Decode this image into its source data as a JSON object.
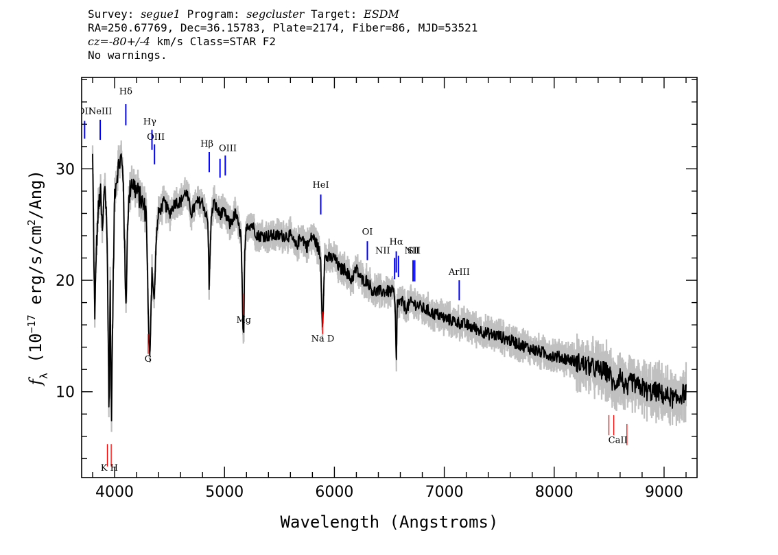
{
  "header": {
    "survey_label": "Survey: ",
    "survey": "segue1",
    "program_label": " Program: ",
    "program": "segcluster",
    "target_label": " Target: ",
    "target": "ESDM",
    "line2": "RA=250.67769, Dec=36.15783, Plate=2174, Fiber=86, MJD=53521",
    "cz_label": "cz",
    "cz_value": "=-80+/-4",
    "cz_rest": " km/s Class=STAR F2",
    "line4": "No warnings."
  },
  "colors": {
    "flux": "#000000",
    "error_band": "#c0c0c0",
    "emission": "#0000ff",
    "absorption": "#ff0000"
  },
  "chart_data": {
    "type": "line",
    "xlabel": "Wavelength (Angstroms)",
    "ylabel": "f_λ (10^-17 erg/s/cm^2/Ang)",
    "ylabel_parts": {
      "f": "f",
      "sub": "λ",
      "pre": " (10",
      "exp": "−17",
      "mid": " erg/s/cm",
      "exp2": "2",
      "post": "/Ang)"
    },
    "xlim": [
      3700,
      9300
    ],
    "ylim": [
      2.3,
      38.2
    ],
    "xticks": [
      4000,
      5000,
      6000,
      7000,
      8000,
      9000
    ],
    "yticks": [
      10,
      20,
      30
    ],
    "xtick_labels": [
      "4000",
      "5000",
      "6000",
      "7000",
      "8000",
      "9000"
    ],
    "ytick_labels": [
      "10",
      "20",
      "30"
    ],
    "series": [
      {
        "x": [
          3800,
          3820,
          3830,
          3850,
          3870,
          3890,
          3910,
          3930,
          3950,
          3960,
          3970,
          3985,
          4000,
          4030,
          4060,
          4080,
          4102,
          4120,
          4150,
          4200,
          4250,
          4290,
          4310,
          4320,
          4340,
          4360,
          4380,
          4400,
          4450,
          4500,
          4550,
          4600,
          4650,
          4700,
          4750,
          4800,
          4830,
          4850,
          4861,
          4875,
          4900,
          4950,
          5000,
          5050,
          5100,
          5150,
          5168,
          5175,
          5183,
          5200,
          5250,
          5300,
          5350,
          5400,
          5450,
          5500,
          5550,
          5600,
          5650,
          5700,
          5750,
          5800,
          5850,
          5875,
          5890,
          5896,
          5910,
          5950,
          6000,
          6050,
          6100,
          6150,
          6200,
          6250,
          6300,
          6350,
          6400,
          6450,
          6500,
          6540,
          6555,
          6563,
          6572,
          6590,
          6620,
          6650,
          6700,
          6750,
          6800,
          6850,
          6900,
          6950,
          7000,
          7100,
          7200,
          7300,
          7400,
          7500,
          7600,
          7700,
          7800,
          7900,
          8000,
          8100,
          8200,
          8300,
          8400,
          8498,
          8542,
          8600,
          8662,
          8700,
          8750,
          8800,
          8850,
          8900,
          8950,
          9000,
          9050,
          9100,
          9150,
          9200
        ],
        "y": [
          31,
          16,
          22,
          26,
          28,
          24,
          29,
          25,
          8,
          20,
          7,
          18,
          28,
          30,
          31,
          29,
          17,
          26,
          29,
          28,
          27,
          26,
          15,
          13,
          21,
          18,
          24,
          26,
          27,
          26,
          27,
          27,
          28,
          26,
          27,
          27,
          26,
          25,
          19,
          25,
          27,
          26,
          26,
          25,
          26,
          24,
          16,
          14,
          22,
          25,
          25,
          24,
          24,
          24,
          24,
          24,
          24,
          24,
          23,
          24,
          23,
          24,
          23,
          22,
          16,
          17,
          22,
          22,
          22,
          21,
          21,
          20,
          21,
          20,
          20,
          19,
          19,
          19,
          19,
          19,
          17,
          12,
          18,
          18,
          18,
          17.5,
          18,
          17.8,
          17.5,
          17.3,
          17,
          16.9,
          16.6,
          16.3,
          16,
          15.6,
          15.2,
          15,
          14.6,
          14.2,
          13.8,
          13.5,
          13.2,
          13,
          12.7,
          12.3,
          12,
          11.7,
          10.5,
          11.5,
          10,
          11,
          10.5,
          10.4,
          10,
          10,
          10,
          9.6,
          9.6,
          9.2,
          9.7,
          10
        ]
      }
    ],
    "emission_lines": [
      {
        "label": "OII",
        "x": 3727,
        "y_top": 34.3,
        "y_bottom": 32.7
      },
      {
        "label": "NeIII",
        "x": 3869,
        "y_top": 34.4,
        "y_bottom": 32.6
      },
      {
        "label": "Hδ",
        "x": 4102,
        "y_top": 35.8,
        "y_bottom": 33.9
      },
      {
        "label": "Hγ",
        "x": 4340,
        "y_top": 33.5,
        "y_bottom": 31.7
      },
      {
        "label": "OIII",
        "x": 4363,
        "y_top": 32.2,
        "y_bottom": 30.4
      },
      {
        "label": "Hβ",
        "x": 4861,
        "y_top": 31.5,
        "y_bottom": 29.7
      },
      {
        "label": "OIII",
        "x": 4959,
        "y_top": 30.9,
        "y_bottom": 29.2
      },
      {
        "label": "OIII",
        "x": 5007,
        "y_top": 31.2,
        "y_bottom": 29.4
      },
      {
        "label": "HeI",
        "x": 5876,
        "y_top": 27.7,
        "y_bottom": 25.9
      },
      {
        "label": "OI",
        "x": 6300,
        "y_top": 23.5,
        "y_bottom": 21.8
      },
      {
        "label": "NII",
        "x": 6548,
        "y_top": 22,
        "y_bottom": 20.1
      },
      {
        "label": "Hα",
        "x": 6563,
        "y_top": 22.6,
        "y_bottom": 20.7
      },
      {
        "label": "NII",
        "x": 6583,
        "y_top": 22.2,
        "y_bottom": 20.3
      },
      {
        "label": "SII",
        "x": 6716,
        "y_top": 21.8,
        "y_bottom": 19.9
      },
      {
        "label": "SII",
        "x": 6731,
        "y_top": 21.8,
        "y_bottom": 19.9
      },
      {
        "label": "ArIII",
        "x": 7136,
        "y_top": 20,
        "y_bottom": 18.2
      }
    ],
    "absorption_lines": [
      {
        "label": "K",
        "x": 3934,
        "y_top": 5.3,
        "y_bottom": 3.3
      },
      {
        "label": "H",
        "x": 3969,
        "y_top": 5.3,
        "y_bottom": 3.3
      },
      {
        "label": "G",
        "x": 4305,
        "y_top": 15.2,
        "y_bottom": 13.4
      },
      {
        "label": "Mg",
        "x": 5175,
        "y_top": 18.8,
        "y_bottom": 16.9
      },
      {
        "label": "Na D",
        "x": 5894,
        "y_top": 17.2,
        "y_bottom": 15.2
      },
      {
        "label": "CaII",
        "x": 8498,
        "y_top": 7.9,
        "y_bottom": 6.1
      },
      {
        "label": "CaII",
        "x": 8542,
        "y_top": 7.9,
        "y_bottom": 6.1
      },
      {
        "label": "CaII",
        "x": 8662,
        "y_top": 7.1,
        "y_bottom": 5.2
      }
    ],
    "line_label_texts": [
      {
        "text": "OII",
        "x": 3727,
        "y": 34.9
      },
      {
        "text": "NeIII",
        "x": 3869,
        "y": 34.9
      },
      {
        "text": "Hδ",
        "x": 4102,
        "y": 36.7
      },
      {
        "text": "Hγ",
        "x": 4320,
        "y": 34.0
      },
      {
        "text": "OIII",
        "x": 4375,
        "y": 32.6
      },
      {
        "text": "Hβ",
        "x": 4840,
        "y": 32.0
      },
      {
        "text": "OIII",
        "x": 5030,
        "y": 31.6
      },
      {
        "text": "HeI",
        "x": 5876,
        "y": 28.3
      },
      {
        "text": "OI",
        "x": 6300,
        "y": 24.1
      },
      {
        "text": "NII",
        "x": 6440,
        "y": 22.4
      },
      {
        "text": "Hα",
        "x": 6563,
        "y": 23.2
      },
      {
        "text": "NII",
        "x": 6705,
        "y": 22.4
      },
      {
        "text": "SII",
        "x": 6725,
        "y": 22.4
      },
      {
        "text": "ArIII",
        "x": 7136,
        "y": 20.5
      },
      {
        "text": "K H",
        "x": 3952,
        "y": 2.9
      },
      {
        "text": "G",
        "x": 4305,
        "y": 12.7
      },
      {
        "text": "Mg",
        "x": 5175,
        "y": 16.2
      },
      {
        "text": "Na D",
        "x": 5894,
        "y": 14.5
      },
      {
        "text": "CaII",
        "x": 8580,
        "y": 5.4
      }
    ]
  }
}
